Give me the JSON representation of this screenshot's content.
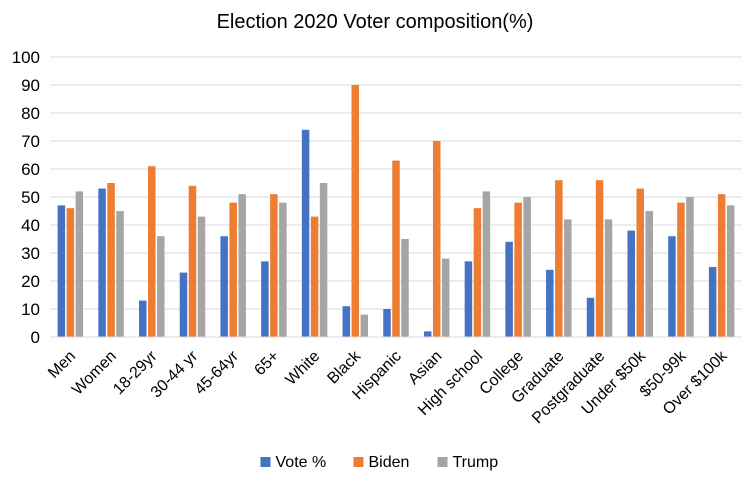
{
  "chart_data": {
    "type": "bar",
    "title": "Election 2020 Voter composition(%)",
    "xlabel": "",
    "ylabel": "",
    "ylim": [
      0,
      100
    ],
    "yticks": [
      "0",
      "10",
      "20",
      "30",
      "40",
      "50",
      "60",
      "70",
      "80",
      "90",
      "100"
    ],
    "grid": true,
    "legend_position": "bottom",
    "categories": [
      "Men",
      "Women",
      "18-29yr",
      "30-44 yr",
      "45-64yr",
      "65+",
      "White",
      "Black",
      "Hispanic",
      "Asian",
      "High school",
      "College",
      "Graduate",
      "Postgraduate",
      "Under $50k",
      "$50-99k",
      "Over $100k"
    ],
    "series": [
      {
        "name": "Vote %",
        "color": "#4472C4",
        "values": [
          47,
          53,
          13,
          23,
          36,
          27,
          74,
          11,
          10,
          2,
          27,
          34,
          24,
          14,
          38,
          36,
          25
        ]
      },
      {
        "name": "Biden",
        "color": "#ED7D31",
        "values": [
          46,
          55,
          61,
          54,
          48,
          51,
          43,
          90,
          63,
          70,
          46,
          48,
          56,
          56,
          53,
          48,
          51
        ]
      },
      {
        "name": "Trump",
        "color": "#A5A5A5",
        "values": [
          52,
          45,
          36,
          43,
          51,
          48,
          55,
          8,
          35,
          28,
          52,
          50,
          42,
          42,
          45,
          50,
          47
        ]
      }
    ]
  }
}
